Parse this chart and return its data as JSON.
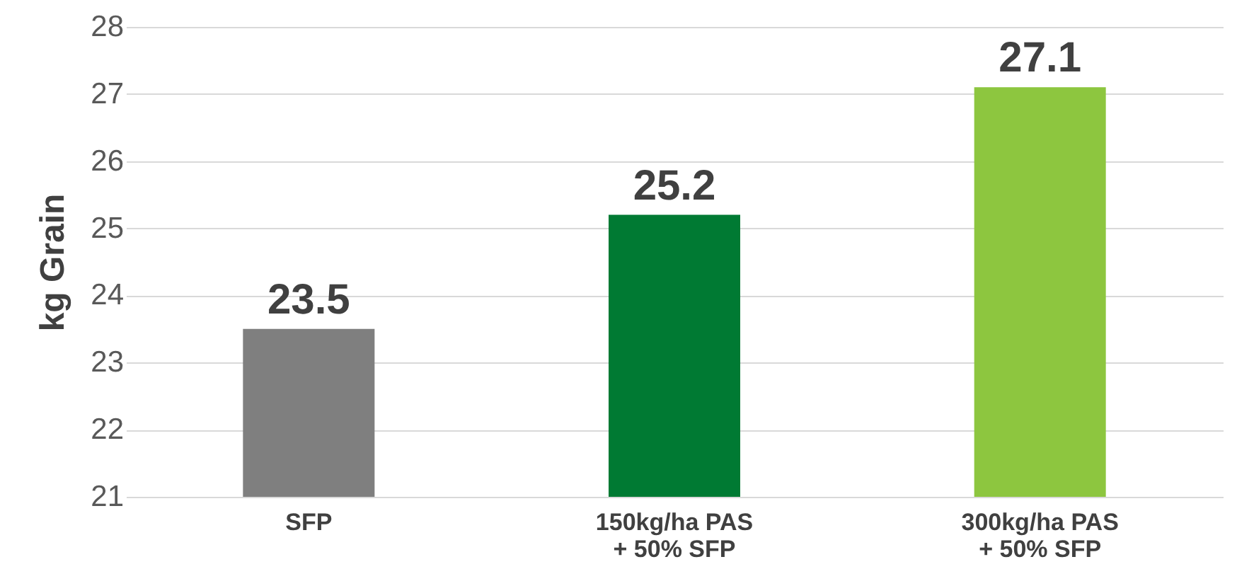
{
  "chart_data": {
    "type": "bar",
    "ylabel": "kg Grain",
    "categories": [
      "SFP",
      "150kg/ha PAS\n+ 50% SFP",
      "300kg/ha PAS\n+ 50% SFP"
    ],
    "values": [
      23.5,
      25.2,
      27.1
    ],
    "colors": [
      "#7f7f7f",
      "#007a33",
      "#8dc63f"
    ],
    "ylim": [
      21,
      28
    ],
    "yticks": [
      21,
      22,
      23,
      24,
      25,
      26,
      27,
      28
    ],
    "grid": "y",
    "data_labels": true
  }
}
